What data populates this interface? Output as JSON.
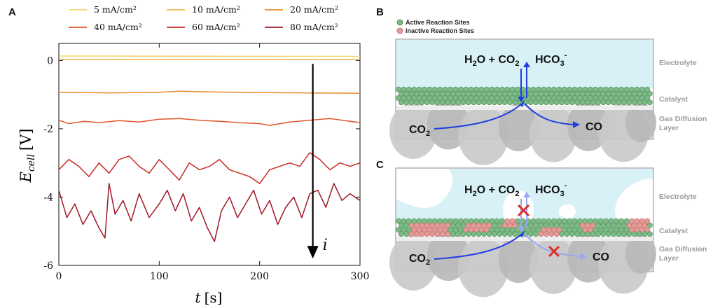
{
  "panels": {
    "a": "A",
    "b": "B",
    "c": "C"
  },
  "colors": {
    "series": [
      "#f6d36a",
      "#f2b04a",
      "#ea8a2c",
      "#e3562a",
      "#c92a22",
      "#a11726"
    ],
    "electrolyte": "#d8f1f6",
    "gdl": "#cfcfcf",
    "active_site": "#7dbb86",
    "inactive_site": "#e69a98",
    "arrow": "#1f3fe0",
    "arrow_faded": "#9aa6ee",
    "cross": "#e02a2a",
    "side_text": "#9a9a9a"
  },
  "chart_data": {
    "type": "line",
    "xlabel_var": "t",
    "xlabel_unit": "[s]",
    "ylabel_var": "E",
    "ylabel_sub": "cell",
    "ylabel_unit": "[V]",
    "xlim": [
      0,
      300
    ],
    "ylim": [
      -6,
      0.5
    ],
    "xticks": [
      0,
      100,
      200,
      300
    ],
    "yticks": [
      0,
      -2,
      -4,
      -6
    ],
    "annotation_arrow_label": "i",
    "annotation_arrow_x": 253,
    "annotation_arrow_y": [
      -0.1,
      -5.8
    ],
    "grid": false,
    "legend_position": "top",
    "series": [
      {
        "name": "5 mA/cm²",
        "x": [
          0,
          300
        ],
        "y": [
          0.13,
          0.12
        ]
      },
      {
        "name": "10 mA/cm²",
        "x": [
          0,
          300
        ],
        "y": [
          0.03,
          0.03
        ]
      },
      {
        "name": "20 mA/cm²",
        "x": [
          0,
          50,
          100,
          120,
          150,
          200,
          250,
          300
        ],
        "y": [
          -0.93,
          -0.95,
          -0.93,
          -0.9,
          -0.92,
          -0.94,
          -0.95,
          -0.96
        ]
      },
      {
        "name": "40 mA/cm²",
        "x": [
          0,
          10,
          25,
          40,
          60,
          80,
          100,
          120,
          140,
          160,
          180,
          200,
          210,
          230,
          250,
          270,
          290,
          300
        ],
        "y": [
          -1.75,
          -1.85,
          -1.78,
          -1.82,
          -1.76,
          -1.8,
          -1.72,
          -1.7,
          -1.75,
          -1.78,
          -1.82,
          -1.85,
          -1.9,
          -1.8,
          -1.75,
          -1.7,
          -1.78,
          -1.82
        ]
      },
      {
        "name": "60 mA/cm²",
        "x": [
          0,
          10,
          20,
          30,
          40,
          50,
          60,
          70,
          80,
          90,
          100,
          110,
          120,
          130,
          140,
          150,
          160,
          170,
          180,
          190,
          200,
          210,
          220,
          230,
          240,
          250,
          260,
          270,
          280,
          290,
          300
        ],
        "y": [
          -3.2,
          -2.9,
          -3.1,
          -3.4,
          -3.0,
          -3.3,
          -2.9,
          -2.8,
          -3.1,
          -3.3,
          -2.9,
          -3.2,
          -3.5,
          -3.0,
          -3.2,
          -3.1,
          -2.9,
          -3.2,
          -3.3,
          -3.4,
          -3.6,
          -3.2,
          -3.1,
          -3.0,
          -3.1,
          -2.7,
          -2.9,
          -3.2,
          -3.0,
          -3.1,
          -3.0
        ]
      },
      {
        "name": "80 mA/cm²",
        "x": [
          0,
          8,
          16,
          24,
          32,
          40,
          46,
          50,
          56,
          64,
          72,
          80,
          90,
          100,
          108,
          116,
          124,
          132,
          140,
          148,
          155,
          162,
          170,
          178,
          186,
          194,
          202,
          210,
          218,
          226,
          234,
          242,
          250,
          258,
          266,
          274,
          282,
          290,
          300
        ],
        "y": [
          -3.8,
          -4.6,
          -4.2,
          -4.8,
          -4.4,
          -4.9,
          -5.2,
          -3.6,
          -4.5,
          -4.1,
          -4.7,
          -3.9,
          -4.6,
          -4.2,
          -3.8,
          -4.4,
          -3.9,
          -4.7,
          -4.3,
          -4.9,
          -5.3,
          -4.4,
          -4.0,
          -4.6,
          -4.2,
          -3.8,
          -4.5,
          -4.1,
          -4.8,
          -4.3,
          -4.0,
          -4.6,
          -3.9,
          -3.8,
          -4.3,
          -3.6,
          -4.1,
          -3.9,
          -4.1
        ]
      }
    ]
  },
  "diagram": {
    "legend_active": "Active Reaction Sites",
    "legend_inactive": "Inactive Reaction Sites",
    "label_electrolyte": "Electrolyte",
    "label_catalyst": "Catalyst",
    "label_gdl_1": "Gas Diffusion",
    "label_gdl_2": "Layer",
    "reactants_h2o": "H",
    "reactants_h2o_sub": "2",
    "reactants_o_plus_co": "O + CO",
    "reactants_co_sub": "2",
    "product_hco": "HCO",
    "product_hco_sub": "3",
    "product_hco_sup": "-",
    "gdl_co2": "CO",
    "gdl_co2_sub": "2",
    "gdl_co": "CO"
  }
}
